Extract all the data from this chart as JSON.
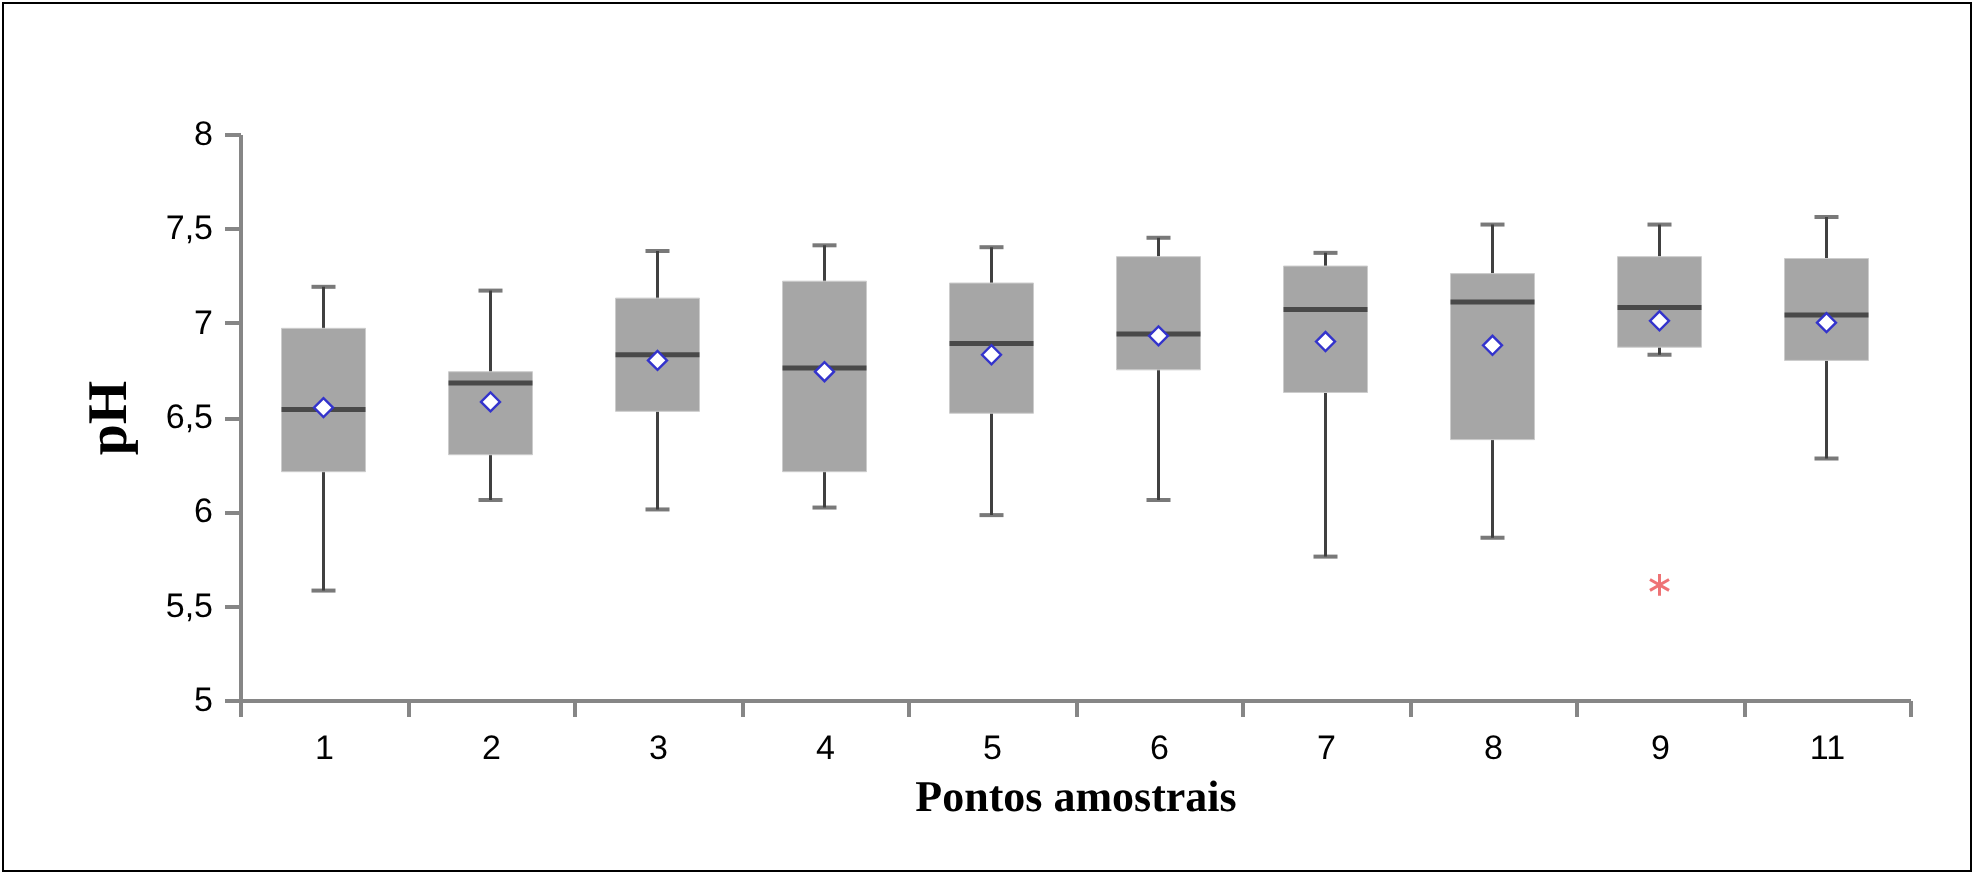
{
  "chart_data": {
    "type": "box",
    "xlabel": "Pontos amostrais",
    "ylabel": "pH",
    "categories": [
      "1",
      "2",
      "3",
      "4",
      "5",
      "6",
      "7",
      "8",
      "9",
      "11"
    ],
    "ylim": [
      5,
      8
    ],
    "yticks": [
      5,
      {
        "value": 5.5,
        "label": "5,5"
      },
      6,
      {
        "value": 6.5,
        "label": "6,5"
      },
      7,
      {
        "value": 7.5,
        "label": "7,5"
      },
      8
    ],
    "grid": false,
    "marker": "diamond",
    "series": [
      {
        "color": "#a6a6a6",
        "boxes": [
          {
            "low": 5.58,
            "q1": 6.21,
            "median": 6.54,
            "q3": 6.97,
            "high": 7.19,
            "mean": 6.55
          },
          {
            "low": 6.06,
            "q1": 6.3,
            "median": 6.68,
            "q3": 6.74,
            "high": 7.17,
            "mean": 6.58
          },
          {
            "low": 6.01,
            "q1": 6.53,
            "median": 6.83,
            "q3": 7.13,
            "high": 7.38,
            "mean": 6.8
          },
          {
            "low": 6.02,
            "q1": 6.21,
            "median": 6.76,
            "q3": 7.22,
            "high": 7.41,
            "mean": 6.74
          },
          {
            "low": 5.98,
            "q1": 6.52,
            "median": 6.89,
            "q3": 7.21,
            "high": 7.4,
            "mean": 6.83
          },
          {
            "low": 6.06,
            "q1": 6.75,
            "median": 6.94,
            "q3": 7.35,
            "high": 7.45,
            "mean": 6.93
          },
          {
            "low": 5.76,
            "q1": 6.63,
            "median": 7.07,
            "q3": 7.3,
            "high": 7.37,
            "mean": 6.9
          },
          {
            "low": 5.86,
            "q1": 6.38,
            "median": 7.11,
            "q3": 7.26,
            "high": 7.52,
            "mean": 6.88
          },
          {
            "low": 6.83,
            "q1": 6.87,
            "median": 7.08,
            "q3": 7.35,
            "high": 7.52,
            "mean": 7.01,
            "outliers": [
              5.61
            ]
          },
          {
            "low": 6.28,
            "q1": 6.8,
            "median": 7.04,
            "q3": 7.34,
            "high": 7.56,
            "mean": 7.0
          }
        ]
      }
    ]
  }
}
